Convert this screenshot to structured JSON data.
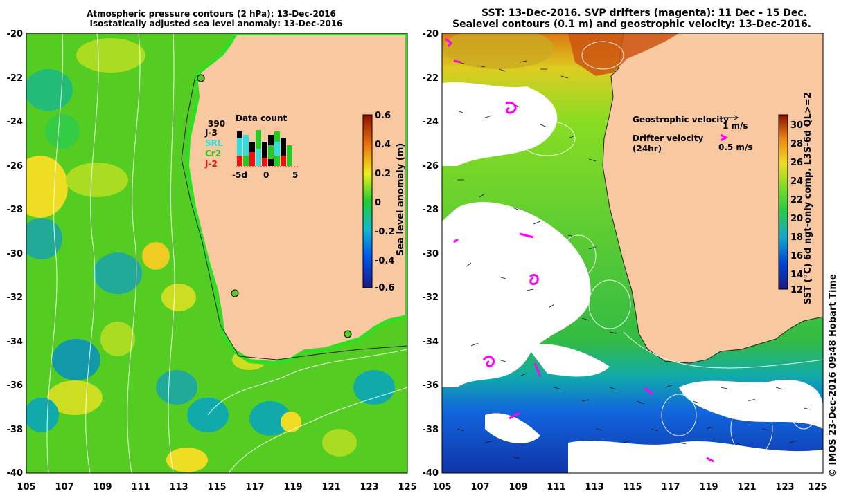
{
  "left_panel": {
    "title_line1": "Atmospheric pressure contours (2 hPa): 13-Dec-2016",
    "title_line2": "Isostatically adjusted sea level anomaly: 13-Dec-2016",
    "colorbar_label": "Sea level anomaly (m)",
    "colorbar_ticks": [
      "0.6",
      "0.4",
      "0.2",
      "0",
      "-0.2",
      "-0.4",
      "-0.6"
    ],
    "data_count": {
      "title": "Data count",
      "total": "390",
      "missions": [
        {
          "label": "J-3",
          "color": "#000000"
        },
        {
          "label": "SRL",
          "color": "#33dddd"
        },
        {
          "label": "Cr2",
          "color": "#22cc22"
        },
        {
          "label": "J-2",
          "color": "#ee1111"
        }
      ],
      "axis_ticks": [
        "-5d",
        "0",
        "5"
      ]
    }
  },
  "right_panel": {
    "title_line1": "SST: 13-Dec-2016. SVP drifters (magenta): 11 Dec - 15 Dec.",
    "title_line2": "Sealevel contours (0.1 m) and geostrophic velocity: 13-Dec-2016.",
    "legend_geo": "Geostrophic velocity",
    "legend_geo_scale": "1 m/s",
    "legend_drifter_1": "Drifter velocity",
    "legend_drifter_2": "(24hr)",
    "legend_drifter_scale": "0.5 m/s",
    "colorbar_label": "SST (°C) 6d ngt-only comp. L3S-6d QL>=2",
    "colorbar_ticks": [
      "30",
      "28",
      "26",
      "24",
      "22",
      "20",
      "18",
      "16",
      "14",
      "12"
    ]
  },
  "axes": {
    "lat_ticks": [
      "-20",
      "-22",
      "-24",
      "-26",
      "-28",
      "-30",
      "-32",
      "-34",
      "-36",
      "-38",
      "-40"
    ],
    "lon_ticks": [
      "105",
      "107",
      "109",
      "111",
      "113",
      "115",
      "117",
      "119",
      "121",
      "123",
      "125"
    ]
  },
  "credit": "© IMOS 23-Dec-2016 09:48 Hobart Time",
  "colors": {
    "land": "#f8c8a0",
    "ocean_green": "#66dd22",
    "sst_warm": "#dd6600",
    "sst_cold": "#1133aa",
    "drifter": "#ff00ff"
  }
}
